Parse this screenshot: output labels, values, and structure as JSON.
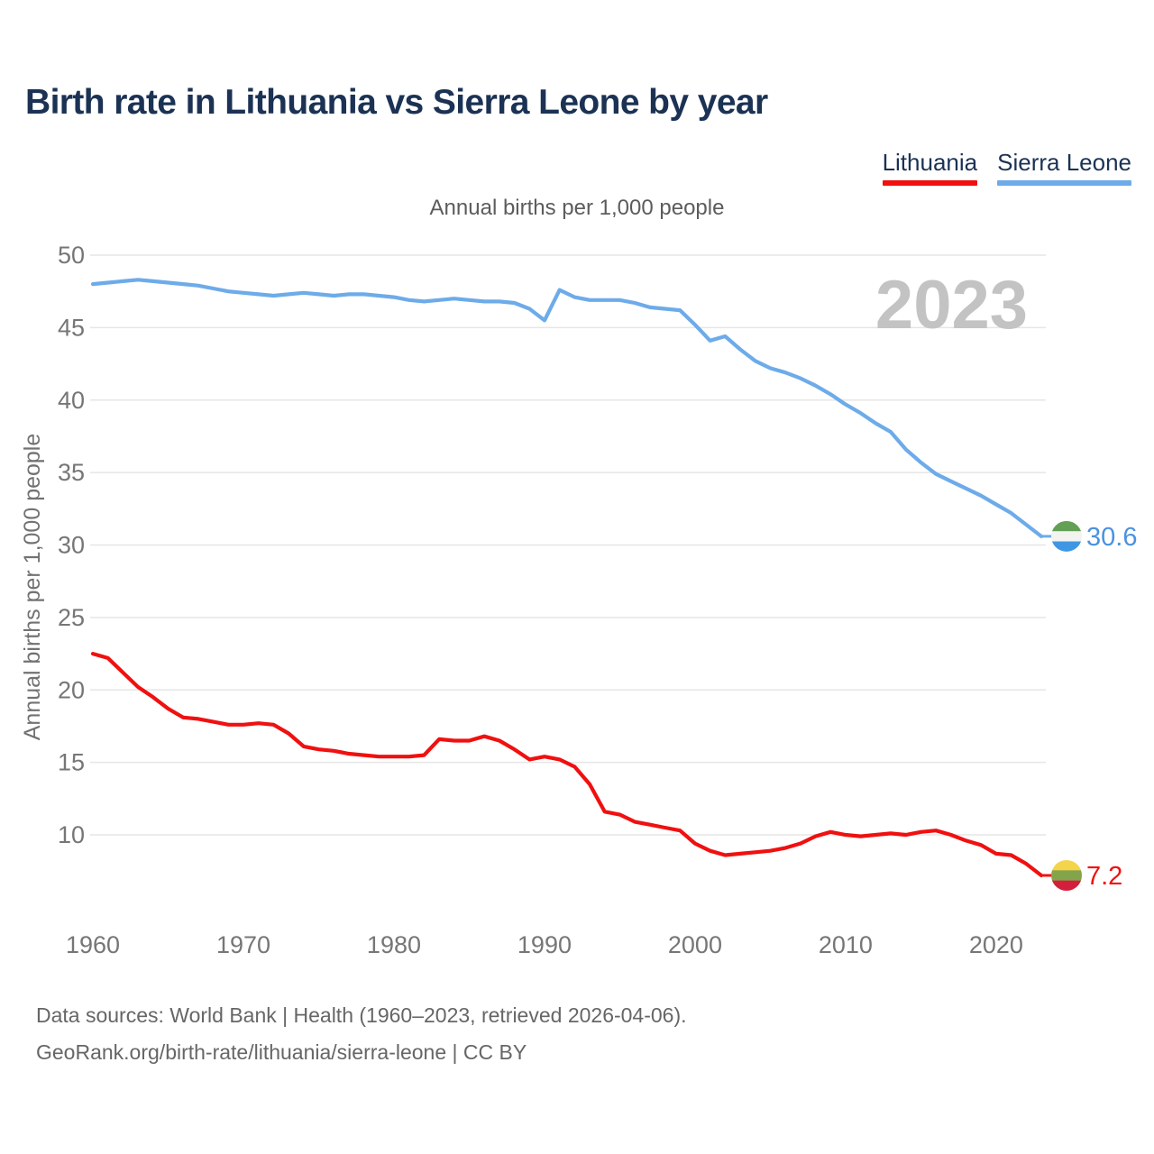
{
  "header": {
    "title": "Birth rate in Lithuania vs Sierra Leone by year"
  },
  "legend": [
    {
      "label": "Lithuania",
      "color": "#f01010"
    },
    {
      "label": "Sierra Leone",
      "color": "#6dabe9"
    }
  ],
  "subtitle": "Annual births per 1,000 people",
  "watermark": "2023",
  "axes": {
    "y_label": "Annual births per 1,000 people",
    "y_ticks": [
      50,
      45,
      40,
      35,
      30,
      25,
      20,
      15,
      10
    ],
    "x_ticks": [
      1960,
      1970,
      1980,
      1990,
      2000,
      2010,
      2020
    ]
  },
  "chart_data": {
    "type": "line",
    "title": "Annual births per 1,000 people",
    "xlabel": "",
    "ylabel": "Annual births per 1,000 people",
    "xlim": [
      1960,
      2023
    ],
    "ylim": [
      5,
      50
    ],
    "grid": true,
    "legend_position": "top-right",
    "x": [
      1960,
      1961,
      1962,
      1963,
      1964,
      1965,
      1966,
      1967,
      1968,
      1969,
      1970,
      1971,
      1972,
      1973,
      1974,
      1975,
      1976,
      1977,
      1978,
      1979,
      1980,
      1981,
      1982,
      1983,
      1984,
      1985,
      1986,
      1987,
      1988,
      1989,
      1990,
      1991,
      1992,
      1993,
      1994,
      1995,
      1996,
      1997,
      1998,
      1999,
      2000,
      2001,
      2002,
      2003,
      2004,
      2005,
      2006,
      2007,
      2008,
      2009,
      2010,
      2011,
      2012,
      2013,
      2014,
      2015,
      2016,
      2017,
      2018,
      2019,
      2020,
      2021,
      2022,
      2023
    ],
    "series": [
      {
        "name": "Lithuania",
        "color": "#f01010",
        "label_color": "#f01010",
        "end_label": "7.2",
        "end_value": 7.2,
        "flag_stripes": [
          "#f4d44b",
          "#84a44b",
          "#d31f3c"
        ],
        "values": [
          22.5,
          22.2,
          21.2,
          20.2,
          19.5,
          18.7,
          18.1,
          18.0,
          17.8,
          17.6,
          17.6,
          17.7,
          17.6,
          17.0,
          16.1,
          15.9,
          15.8,
          15.6,
          15.5,
          15.4,
          15.4,
          15.4,
          15.5,
          16.6,
          16.5,
          16.5,
          16.8,
          16.5,
          15.9,
          15.2,
          15.4,
          15.2,
          14.7,
          13.5,
          11.6,
          11.4,
          10.9,
          10.7,
          10.5,
          10.3,
          9.4,
          8.9,
          8.6,
          8.7,
          8.8,
          8.9,
          9.1,
          9.4,
          9.9,
          10.2,
          10.0,
          9.9,
          10.0,
          10.1,
          10.0,
          10.2,
          10.3,
          10.0,
          9.6,
          9.3,
          8.7,
          8.6,
          8.0,
          7.2
        ]
      },
      {
        "name": "Sierra Leone",
        "color": "#6dabe9",
        "label_color": "#4a92e0",
        "end_label": "30.6",
        "end_value": 30.6,
        "flag_stripes": [
          "#63a055",
          "#f3f3f0",
          "#3f97e3"
        ],
        "values": [
          48.0,
          48.1,
          48.2,
          48.3,
          48.2,
          48.1,
          48.0,
          47.9,
          47.7,
          47.5,
          47.4,
          47.3,
          47.2,
          47.3,
          47.4,
          47.3,
          47.2,
          47.3,
          47.3,
          47.2,
          47.1,
          46.9,
          46.8,
          46.9,
          47.0,
          46.9,
          46.8,
          46.8,
          46.7,
          46.3,
          45.5,
          47.6,
          47.1,
          46.9,
          46.9,
          46.9,
          46.7,
          46.4,
          46.3,
          46.2,
          45.2,
          44.1,
          44.4,
          43.5,
          42.7,
          42.2,
          41.9,
          41.5,
          41.0,
          40.4,
          39.7,
          39.1,
          38.4,
          37.8,
          36.6,
          35.7,
          34.9,
          34.4,
          33.9,
          33.4,
          32.8,
          32.2,
          31.4,
          30.6
        ]
      }
    ]
  },
  "footer": {
    "line1": "Data sources: World Bank | Health (1960–2023, retrieved 2026-04-06).",
    "line2": "GeoRank.org/birth-rate/lithuania/sierra-leone | CC BY"
  }
}
